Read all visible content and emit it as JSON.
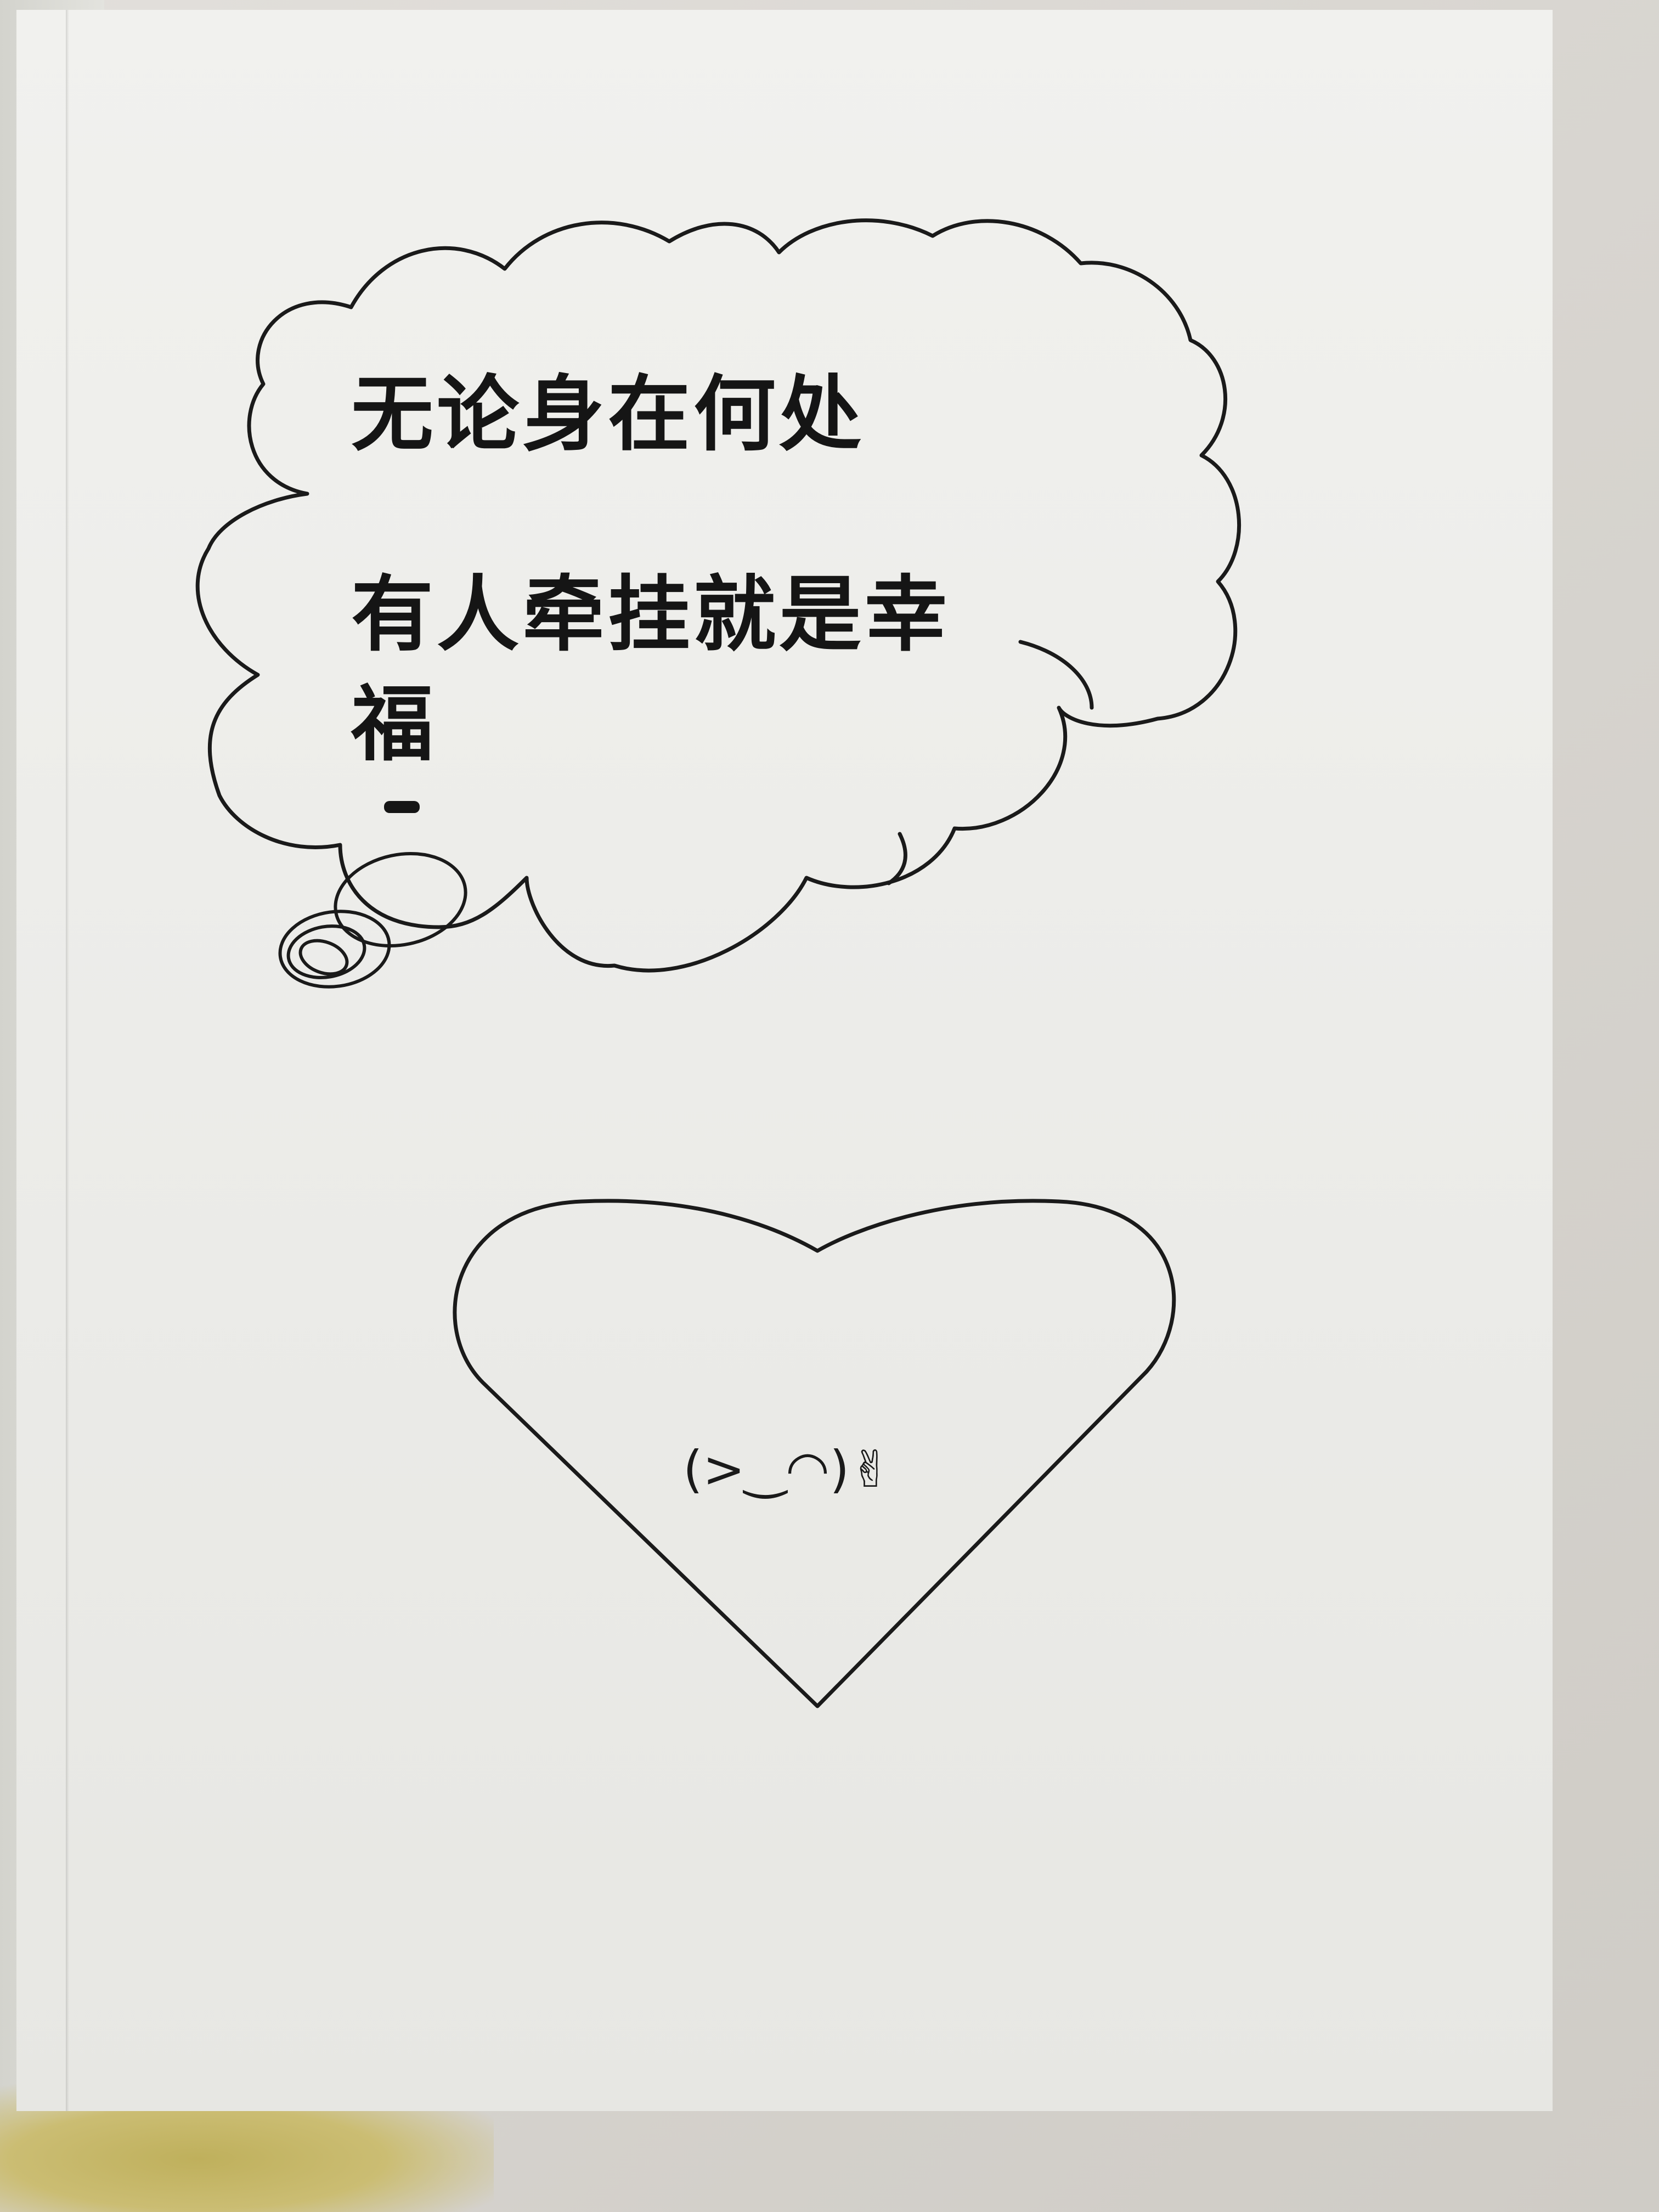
{
  "scene": {
    "subject": "open handmade greeting card page",
    "background": "fabric"
  },
  "card": {
    "line1": "无论身在何处",
    "line2": "有人牵挂就是幸福",
    "emoticon": "(>‿◠)✌"
  },
  "colors": {
    "paper": "#eeeeeb",
    "ink": "#151515",
    "fabric": "#d9d6d1",
    "fabric_yellow": "#c9bb6f"
  },
  "icons": [
    "thought-cloud-icon",
    "scribble-icon",
    "heart-icon"
  ]
}
